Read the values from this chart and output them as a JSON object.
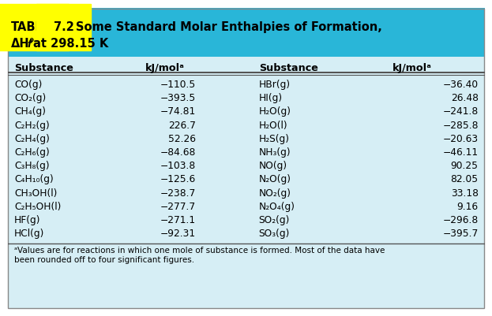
{
  "title_line1": "TABLE 7.2   Some Standard Molar Enthalpies of Formation,",
  "title_line2": "ΔH°f at 298.15 K",
  "header_bg": "#29B6D8",
  "table_bg": "#D6EEF5",
  "col_headers": [
    "Substance",
    "kJ/molᵃ",
    "Substance",
    "kJ/molᵃ"
  ],
  "left_substances": [
    "CO(g)",
    "CO₂(g)",
    "CH₄(g)",
    "C₂H₂(g)",
    "C₂H₄(g)",
    "C₂H₆(g)",
    "C₃H₈(g)",
    "C₄H₁₀(g)",
    "CH₃OH(l)",
    "C₂H₅OH(l)",
    "HF(g)",
    "HCl(g)"
  ],
  "left_values": [
    "−110.5",
    "−393.5",
    "−74.81",
    "226.7",
    "52.26",
    "−84.68",
    "−103.8",
    "−125.6",
    "−238.7",
    "−277.7",
    "−271.1",
    "−92.31"
  ],
  "right_substances": [
    "HBr(g)",
    "HI(g)",
    "H₂O(g)",
    "H₂O(l)",
    "H₂S(g)",
    "NH₃(g)",
    "NO(g)",
    "N₂O(g)",
    "NO₂(g)",
    "N₂O₄(g)",
    "SO₂(g)",
    "SO₃(g)"
  ],
  "right_values": [
    "−36.40",
    "26.48",
    "−241.8",
    "−285.8",
    "−20.63",
    "−46.11",
    "90.25",
    "82.05",
    "33.18",
    "9.16",
    "−296.8",
    "−395.7"
  ],
  "footnote": "ᵃValues are for reactions in which one mole of substance is formed. Most of the data have\nbeen rounded off to four significant figures."
}
